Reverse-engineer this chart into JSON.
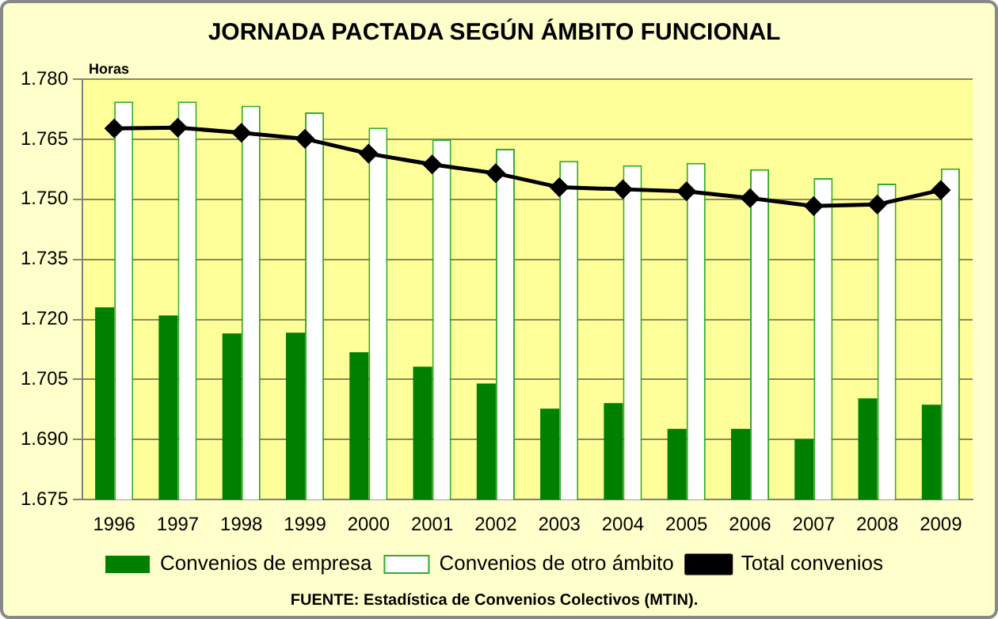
{
  "chart_data": {
    "type": "bar",
    "title": "JORNADA PACTADA SEGÚN ÁMBITO FUNCIONAL",
    "ylabel": "Horas",
    "categories": [
      "1996",
      "1997",
      "1998",
      "1999",
      "2000",
      "2001",
      "2002",
      "2003",
      "2004",
      "2005",
      "2006",
      "2007",
      "2008",
      "2009"
    ],
    "series": [
      {
        "name": "Convenios de empresa",
        "color": "#008000",
        "values": [
          1723,
          1721,
          1716.5,
          1716.7,
          1711.8,
          1708.2,
          1704,
          1697.7,
          1699.1,
          1692.7,
          1692.7,
          1690.1,
          1700.3,
          1698.7
        ]
      },
      {
        "name": "Convenios de otro ámbito",
        "color": "#ffffff",
        "values": [
          1774.4,
          1774.4,
          1773.4,
          1771.7,
          1767.9,
          1765,
          1762.6,
          1759.6,
          1758.5,
          1759.1,
          1757.5,
          1755.3,
          1753.9,
          1757.7
        ]
      },
      {
        "name": "Total convenios",
        "type": "line",
        "color": "#000000",
        "values": [
          1767.7,
          1767.9,
          1766.6,
          1765.1,
          1761.4,
          1758.7,
          1756.5,
          1753,
          1752.5,
          1752,
          1750.3,
          1748.3,
          1748.7,
          1752.3
        ]
      }
    ],
    "ylim": [
      1675,
      1780
    ],
    "yticks": [
      {
        "value": 1675,
        "label": "1.675"
      },
      {
        "value": 1690,
        "label": "1.690"
      },
      {
        "value": 1705,
        "label": "1.705"
      },
      {
        "value": 1720,
        "label": "1.720"
      },
      {
        "value": 1735,
        "label": "1.735"
      },
      {
        "value": 1750,
        "label": "1.750"
      },
      {
        "value": 1765,
        "label": "1.765"
      },
      {
        "value": 1780,
        "label": "1.780"
      }
    ],
    "grid": "y",
    "legend": "bottom",
    "marker": "diamond",
    "annotations": [
      "FUENTE: Estadística de Convenios Colectivos (MTIN)."
    ]
  }
}
